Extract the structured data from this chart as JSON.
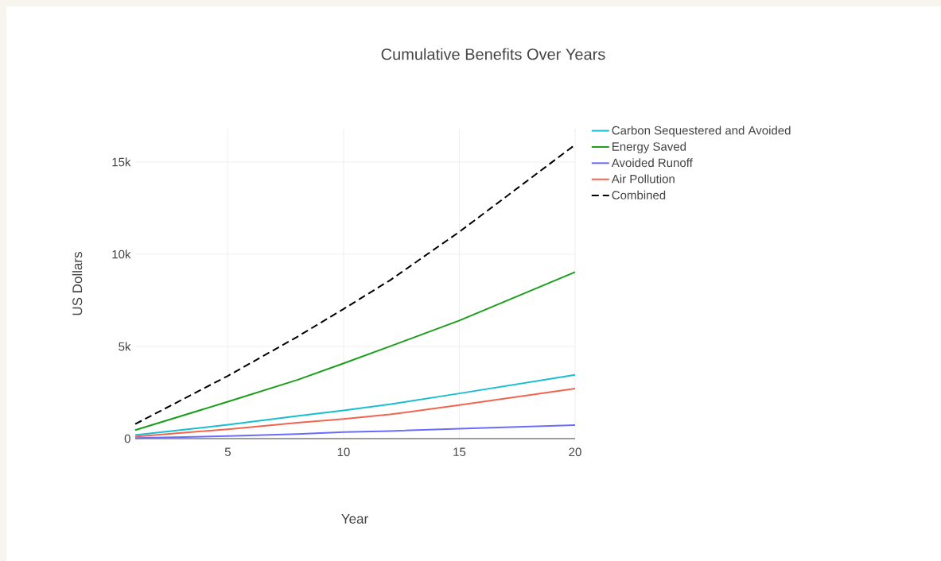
{
  "chart_data": {
    "type": "line",
    "title": "Cumulative Benefits Over Years",
    "xlabel": "Year",
    "ylabel": "US Dollars",
    "x": [
      1,
      5,
      8,
      10,
      12,
      15,
      20
    ],
    "series": [
      {
        "name": "Carbon Sequestered and Avoided",
        "color": "#17becf",
        "values": [
          190,
          750,
          1230,
          1530,
          1860,
          2450,
          3460
        ]
      },
      {
        "name": "Energy Saved",
        "color": "#1a9e1a",
        "values": [
          460,
          2000,
          3180,
          4080,
          5000,
          6400,
          9030
        ]
      },
      {
        "name": "Avoided Runoff",
        "color": "#6a6cfa",
        "values": [
          30,
          140,
          250,
          350,
          410,
          540,
          730
        ]
      },
      {
        "name": "Air Pollution",
        "color": "#f2644f",
        "values": [
          110,
          510,
          860,
          1070,
          1310,
          1820,
          2710
        ]
      },
      {
        "name": "Combined",
        "color": "#000000",
        "line_style": "dashed",
        "values": [
          790,
          3400,
          5520,
          7030,
          8580,
          11210,
          15930
        ]
      }
    ],
    "xlim": [
      1,
      20
    ],
    "ylim": [
      0,
      16800
    ],
    "xticks": [
      5,
      10,
      15,
      20
    ],
    "yticks": [
      0,
      {
        "value": 5000,
        "label": "5k"
      },
      {
        "value": 10000,
        "label": "10k"
      },
      {
        "value": 15000,
        "label": "15k"
      }
    ],
    "grid": true,
    "legend": "top right",
    "line_style": "solid",
    "marker": "none"
  }
}
